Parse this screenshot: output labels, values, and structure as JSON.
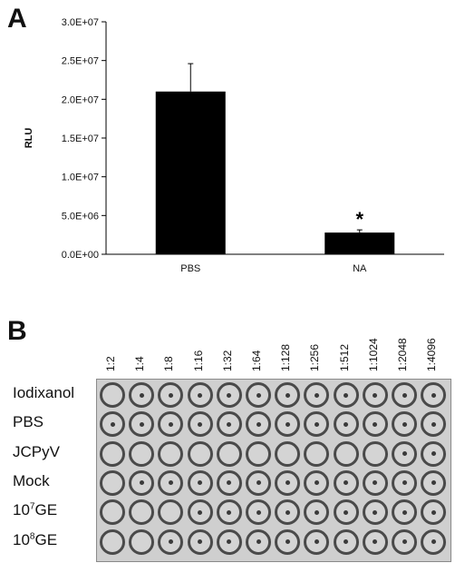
{
  "panel_a": {
    "letter": "A"
  },
  "panel_b": {
    "letter": "B"
  },
  "chart_data": {
    "type": "bar",
    "title": "",
    "xlabel": "",
    "ylabel": "RLU",
    "categories": [
      "PBS",
      "NA"
    ],
    "values": [
      21000000,
      2800000
    ],
    "errors": [
      3600000,
      350000
    ],
    "ylim": [
      0,
      30000000
    ],
    "yticks": [
      0,
      5000000,
      10000000,
      15000000,
      20000000,
      25000000,
      30000000
    ],
    "ytick_labels": [
      "0.0E+00",
      "5.0E+06",
      "1.0E+07",
      "1.5E+07",
      "2.0E+07",
      "2.5E+07",
      "3.0E+07"
    ],
    "annotations": [
      {
        "category": "NA",
        "text": "*"
      }
    ],
    "bar_color": "#000000",
    "grid": false,
    "legend": "none"
  },
  "hemagglutination": {
    "dilutions": [
      "1:2",
      "1:4",
      "1:8",
      "1:16",
      "1:32",
      "1:64",
      "1:128",
      "1:256",
      "1:512",
      "1:1024",
      "1:2048",
      "1:4096"
    ],
    "rows": [
      {
        "label": "Iodixanol",
        "sup": "",
        "suffix": "",
        "pattern": [
          0,
          1,
          1,
          1,
          1,
          1,
          1,
          1,
          1,
          1,
          1,
          1
        ]
      },
      {
        "label": "PBS",
        "sup": "",
        "suffix": "",
        "pattern": [
          1,
          1,
          1,
          1,
          1,
          1,
          1,
          1,
          1,
          1,
          1,
          1
        ]
      },
      {
        "label": "JCPyV",
        "sup": "",
        "suffix": "",
        "pattern": [
          0,
          0,
          0,
          0,
          0,
          0,
          0,
          0,
          0,
          0,
          1,
          1
        ]
      },
      {
        "label": "Mock",
        "sup": "",
        "suffix": "",
        "pattern": [
          0,
          1,
          1,
          1,
          1,
          1,
          1,
          1,
          1,
          1,
          1,
          1
        ]
      },
      {
        "label": "10",
        "sup": "7",
        "suffix": "GE",
        "pattern": [
          0,
          0,
          0,
          1,
          1,
          1,
          1,
          1,
          1,
          1,
          1,
          1
        ]
      },
      {
        "label": "10",
        "sup": "8",
        "suffix": "GE",
        "pattern": [
          0,
          0,
          1,
          1,
          1,
          1,
          1,
          1,
          1,
          1,
          1,
          1
        ]
      }
    ]
  }
}
